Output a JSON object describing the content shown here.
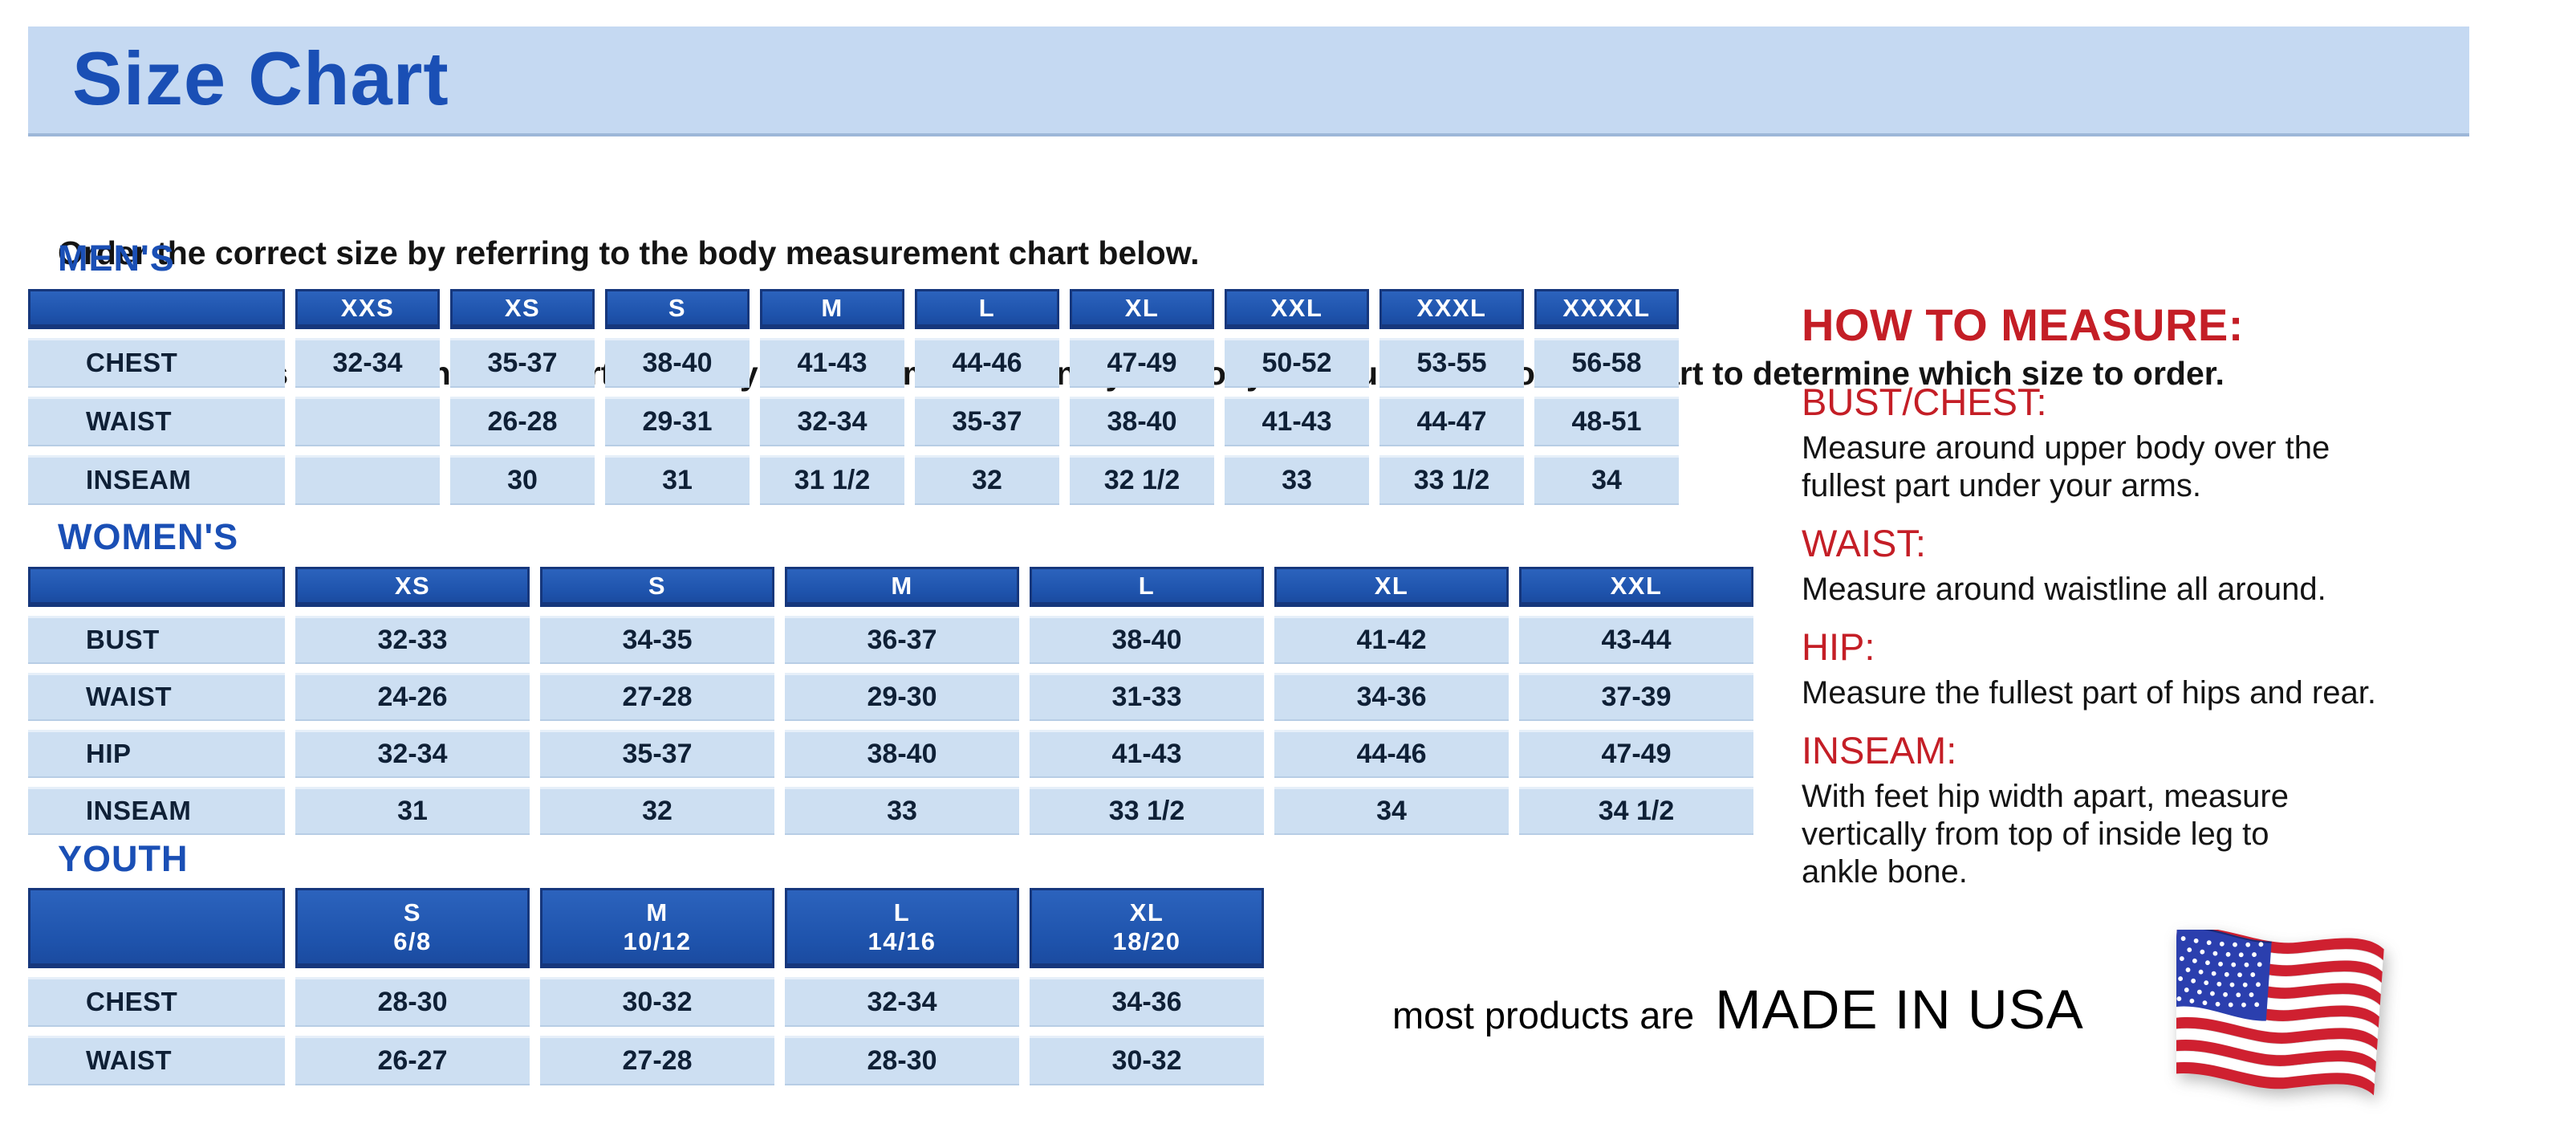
{
  "title": "Size Chart",
  "intro": {
    "line1": "Order the correct size by referring to the body measurement chart below.",
    "line2": "Measurements shown on size chart are body measurements.  Find your body measurements on the chart to determine which size to order."
  },
  "tables": {
    "mens": {
      "heading": "MEN'S",
      "sizes": [
        "XXS",
        "XS",
        "S",
        "M",
        "L",
        "XL",
        "XXL",
        "XXXL",
        "XXXXL"
      ],
      "rows": [
        {
          "label": "CHEST",
          "values": [
            "32-34",
            "35-37",
            "38-40",
            "41-43",
            "44-46",
            "47-49",
            "50-52",
            "53-55",
            "56-58"
          ]
        },
        {
          "label": "WAIST",
          "values": [
            "",
            "26-28",
            "29-31",
            "32-34",
            "35-37",
            "38-40",
            "41-43",
            "44-47",
            "48-51"
          ]
        },
        {
          "label": "INSEAM",
          "values": [
            "",
            "30",
            "31",
            "31 1/2",
            "32",
            "32 1/2",
            "33",
            "33 1/2",
            "34"
          ]
        }
      ]
    },
    "womens": {
      "heading": "WOMEN'S",
      "sizes": [
        "XS",
        "S",
        "M",
        "L",
        "XL",
        "XXL"
      ],
      "rows": [
        {
          "label": "BUST",
          "values": [
            "32-33",
            "34-35",
            "36-37",
            "38-40",
            "41-42",
            "43-44"
          ]
        },
        {
          "label": "WAIST",
          "values": [
            "24-26",
            "27-28",
            "29-30",
            "31-33",
            "34-36",
            "37-39"
          ]
        },
        {
          "label": "HIP",
          "values": [
            "32-34",
            "35-37",
            "38-40",
            "41-43",
            "44-46",
            "47-49"
          ]
        },
        {
          "label": "INSEAM",
          "values": [
            "31",
            "32",
            "33",
            "33 1/2",
            "34",
            "34 1/2"
          ]
        }
      ]
    },
    "youth": {
      "heading": "YOUTH",
      "sizes": [
        {
          "size": "S",
          "range": "6/8"
        },
        {
          "size": "M",
          "range": "10/12"
        },
        {
          "size": "L",
          "range": "14/16"
        },
        {
          "size": "XL",
          "range": "18/20"
        }
      ],
      "rows": [
        {
          "label": "CHEST",
          "values": [
            "28-30",
            "30-32",
            "32-34",
            "34-36"
          ]
        },
        {
          "label": "WAIST",
          "values": [
            "26-27",
            "27-28",
            "28-30",
            "30-32"
          ]
        }
      ]
    }
  },
  "how_to_measure": {
    "title": "HOW TO MEASURE:",
    "sections": [
      {
        "label": "BUST/CHEST:",
        "lines": [
          "Measure around upper body over the",
          "fullest part under your arms."
        ]
      },
      {
        "label": "WAIST:",
        "lines": [
          "Measure around waistline all around."
        ]
      },
      {
        "label": "HIP:",
        "lines": [
          "Measure the fullest part of hips and rear."
        ]
      },
      {
        "label": "INSEAM:",
        "lines": [
          "With feet hip width apart, measure",
          "vertically from top of inside leg to",
          "ankle bone."
        ]
      }
    ]
  },
  "footer": {
    "prefix": "most products are",
    "emphasis": "MADE IN USA",
    "flag_icon": "us-flag-icon"
  },
  "colors": {
    "banner_bg": "#c5d9f2",
    "heading_blue": "#1a4fb5",
    "table_header_blue": "#2258b4",
    "row_blue": "#cddff2",
    "red": "#c41e26",
    "flag_red": "#cf2030",
    "flag_blue": "#2b3fae"
  }
}
